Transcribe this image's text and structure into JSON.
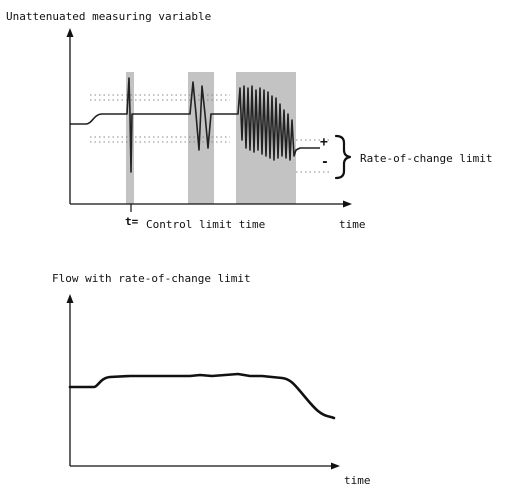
{
  "diagram": {
    "top_panel": {
      "title": "Unattenuated measuring variable",
      "x_axis_label": "time",
      "t_marker_symbol": "t=",
      "t_marker_label": "Control limit time",
      "limit_plus": "+",
      "limit_minus": "-",
      "limit_label": "Rate-of-change limit"
    },
    "bottom_panel": {
      "title": "Flow with rate-of-change limit",
      "x_axis_label": "time"
    }
  },
  "colors": {
    "axis": "#111111",
    "signal": "#222222",
    "shade": "#c3c3c3",
    "limit_dots": "#888888"
  }
}
